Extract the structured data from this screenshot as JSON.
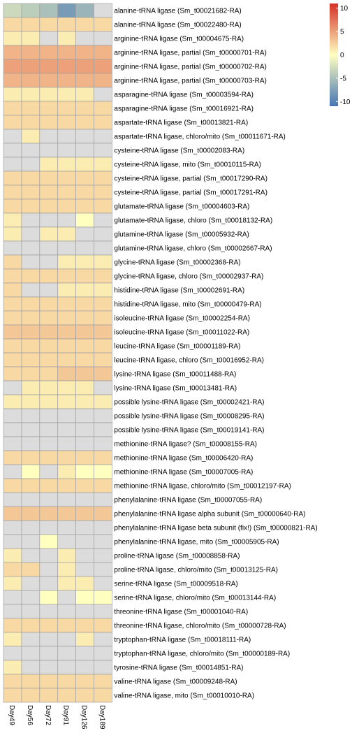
{
  "chart_data": {
    "type": "heatmap",
    "columns": [
      "Day49",
      "Day56",
      "Day72",
      "Day91",
      "Day126",
      "Day189"
    ],
    "rows": [
      "alanine-tRNA ligase (Sm_t00021682-RA)",
      "alanine-tRNA ligase (Sm_t00022480-RA)",
      "arginine-tRNA ligase (Sm_t00004675-RA)",
      "arginine-tRNA ligase, partial (Sm_t00000701-RA)",
      "arginine-tRNA ligase, partial (Sm_t00000702-RA)",
      "arginine-tRNA ligase, partial (Sm_t00000703-RA)",
      "asparagine-tRNA ligase (Sm_t00003594-RA)",
      "asparagine-tRNA ligase (Sm_t00016921-RA)",
      "aspartate-tRNA ligase (Sm_t00013821-RA)",
      "aspartate-tRNA ligase, chloro/mito (Sm_t00011671-RA)",
      "cysteine-tRNA ligase (Sm_t00002083-RA)",
      "cysteine-tRNA ligase, mito (Sm_t00010115-RA)",
      "cysteine-tRNA ligase, partial (Sm_t00017290-RA)",
      "cysteine-tRNA ligase, partial (Sm_t00017291-RA)",
      "glutamate-tRNA ligase (Sm_t00004603-RA)",
      "glutamate-tRNA ligase, chloro (Sm_t00018132-RA)",
      "glutamine-tRNA ligase (Sm_t00005932-RA)",
      "glutamine-tRNA ligase, chloro (Sm_t00002667-RA)",
      "glycine-tRNA ligase (Sm_t00002368-RA)",
      "glycine-tRNA ligase, chloro (Sm_t00002937-RA)",
      "histidine-tRNA ligase (Sm_t00002691-RA)",
      "histidine-tRNA ligase, mito (Sm_t00000479-RA)",
      "isoleucine-tRNA ligase (Sm_t00002254-RA)",
      "isoleucine-tRNA ligase (Sm_t00011022-RA)",
      "leucine-tRNA ligase (Sm_t00001189-RA)",
      "leucine-tRNA ligase, chloro (Sm_t00016952-RA)",
      "lysine-tRNA ligase (Sm_t00011488-RA)",
      "lysine-tRNA ligase (Sm_t00013481-RA)",
      "possible lysine-tRNA ligase (Sm_t00002421-RA)",
      "possible lysine-tRNA ligase (Sm_t00008295-RA)",
      "possible lysine-tRNA ligase (Sm_t00019141-RA)",
      "methionine-tRNA ligase? (Sm_t00008155-RA)",
      "methionine-tRNA ligase (Sm_t00006420-RA)",
      "methionine-tRNA ligase (Sm_t00007005-RA)",
      "methionine-tRNA ligase, chloro/mito (Sm_t00012197-RA)",
      "phenylalanine-tRNA ligase (Sm_t00007055-RA)",
      "phenylalanine-tRNA ligase alpha subunit (Sm_t00000640-RA)",
      "phenylalanine-tRNA ligase beta subunit (fix!) (Sm_t00000821-RA)",
      "phenylalanine-tRNA ligase, mito (Sm_t00005905-RA)",
      "proline-tRNA ligase (Sm_t00008858-RA)",
      "proline-tRNA ligase, chloro/mito (Sm_t00013125-RA)",
      "serine-tRNA ligase (Sm_t00009518-RA)",
      "serine-tRNA ligase, chloro/mito (Sm_t00013144-RA)",
      "threonine-tRNA ligase (Sm_t00001040-RA)",
      "threonine-tRNA ligase, chloro/mito (Sm_t00000728-RA)",
      "tryptophan-tRNA ligase (Sm_t00018111-RA)",
      "tryptophan-tRNA ligase, chloro/mito (Sm_t00000189-RA)",
      "tyrosine-tRNA ligase (Sm_t00014851-RA)",
      "valine-tRNA ligase (Sm_t00009248-RA)",
      "valine-tRNA ligase, mito (Sm_t00010010-RA)"
    ],
    "values": [
      [
        -3,
        -4,
        -5,
        -8,
        -6,
        null
      ],
      [
        2,
        2,
        2,
        2,
        2,
        2
      ],
      [
        1,
        1,
        null,
        1,
        null,
        null
      ],
      [
        4,
        4,
        4,
        4,
        4,
        4
      ],
      [
        5,
        5,
        5,
        5,
        5,
        5
      ],
      [
        4,
        4,
        4,
        4,
        4,
        4
      ],
      [
        1,
        1,
        1,
        1,
        1,
        null
      ],
      [
        2,
        2,
        2,
        2,
        2,
        2
      ],
      [
        2,
        2,
        2,
        2,
        2,
        2
      ],
      [
        null,
        1,
        null,
        null,
        null,
        null
      ],
      [
        null,
        null,
        null,
        null,
        null,
        null
      ],
      [
        null,
        null,
        1,
        1,
        1,
        1
      ],
      [
        2,
        2,
        2,
        2,
        2,
        2
      ],
      [
        2,
        2,
        2,
        2,
        2,
        2
      ],
      [
        2,
        2,
        2,
        2,
        2,
        2
      ],
      [
        1,
        null,
        null,
        null,
        0,
        null
      ],
      [
        1,
        null,
        1,
        1,
        null,
        null
      ],
      [
        null,
        null,
        null,
        null,
        null,
        null
      ],
      [
        2,
        null,
        null,
        1,
        1,
        1
      ],
      [
        2,
        2,
        2,
        2,
        2,
        2
      ],
      [
        2,
        null,
        null,
        1,
        1,
        1
      ],
      [
        2,
        2,
        2,
        2,
        2,
        2
      ],
      [
        2,
        2,
        2,
        2,
        2,
        2
      ],
      [
        3,
        3,
        3,
        3,
        3,
        3
      ],
      [
        2,
        2,
        2,
        2,
        2,
        2
      ],
      [
        2,
        2,
        2,
        2,
        2,
        2
      ],
      [
        2,
        2,
        2,
        3,
        3,
        3
      ],
      [
        null,
        1,
        1,
        1,
        1,
        null
      ],
      [
        1,
        1,
        1,
        1,
        1,
        1
      ],
      [
        null,
        null,
        null,
        null,
        null,
        null
      ],
      [
        null,
        null,
        null,
        null,
        null,
        null
      ],
      [
        null,
        null,
        null,
        null,
        null,
        null
      ],
      [
        2,
        2,
        2,
        2,
        2,
        2
      ],
      [
        null,
        0,
        null,
        1,
        0,
        0
      ],
      [
        2,
        2,
        2,
        2,
        2,
        2
      ],
      [
        null,
        null,
        null,
        null,
        null,
        null
      ],
      [
        3,
        3,
        3,
        3,
        3,
        3
      ],
      [
        null,
        null,
        null,
        null,
        null,
        null
      ],
      [
        null,
        null,
        0,
        null,
        null,
        null
      ],
      [
        1,
        null,
        null,
        1,
        null,
        null
      ],
      [
        2,
        2,
        null,
        1,
        null,
        null
      ],
      [
        1,
        null,
        null,
        1,
        1,
        null
      ],
      [
        null,
        null,
        0,
        null,
        0,
        0
      ],
      [
        null,
        null,
        null,
        null,
        null,
        null
      ],
      [
        2,
        2,
        2,
        2,
        2,
        2
      ],
      [
        1,
        null,
        null,
        null,
        1,
        null
      ],
      [
        null,
        null,
        null,
        null,
        null,
        null
      ],
      [
        1,
        null,
        null,
        null,
        null,
        null
      ],
      [
        2,
        2,
        2,
        2,
        2,
        2
      ],
      [
        2,
        2,
        2,
        2,
        2,
        2
      ]
    ],
    "legend": {
      "ticks": [
        10,
        5,
        0,
        -5,
        -10
      ],
      "range": [
        -11,
        11
      ],
      "placement": "top-right"
    },
    "colors": {
      "low": "#4575b4",
      "mid": "#ffffbf",
      "high": "#d73027",
      "missing": "#dcdcdc",
      "grid": "#a0a0a0"
    }
  }
}
